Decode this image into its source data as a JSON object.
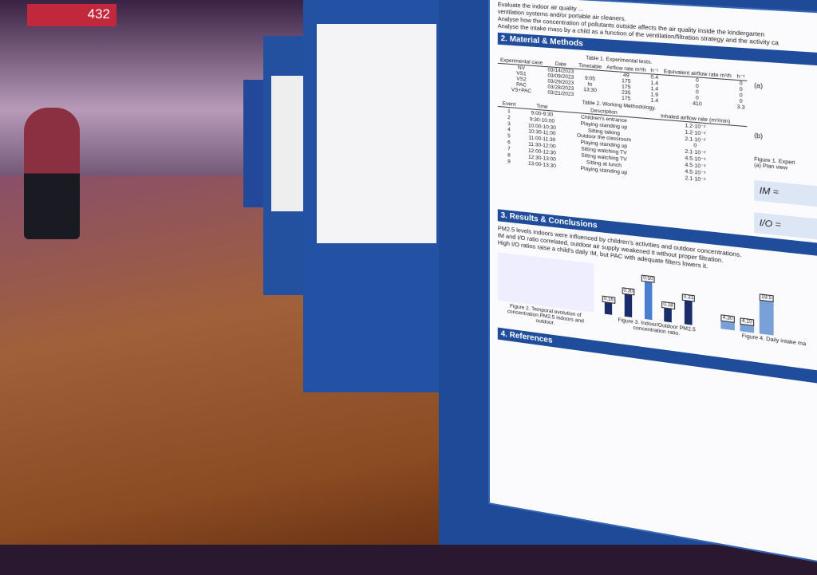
{
  "sign": {
    "room": "432"
  },
  "poster": {
    "intro": [
      "Evaluate the indoor air quality ...",
      "ventilation systems and/or portable air cleaners.",
      "Analyse how the concentration of pollutants outside affects the air quality inside the kindergarten",
      "Analyse the intake mass by a child as a function of the ventilation/filtration strategy and the activity ca"
    ],
    "methods": {
      "title": "2. Material & Methods",
      "table1": {
        "caption": "Table 1. Experimental tests.",
        "headers": [
          "Experimental case",
          "Date",
          "Timetable",
          "Airflow rate m³/h",
          "h⁻¹",
          "Equivalent airflow rate m³/h",
          "h⁻¹"
        ],
        "rows": [
          [
            "NV",
            "03/14/2023",
            "",
            "49",
            "0.4",
            "0",
            "0"
          ],
          [
            "VS1",
            "03/09/2023",
            "9:05",
            "175",
            "1.4",
            "0",
            "0"
          ],
          [
            "VS2",
            "03/29/2023",
            "to",
            "175",
            "1.4",
            "0",
            "0"
          ],
          [
            "PAC",
            "03/28/2023",
            "13:30",
            "235",
            "1.9",
            "0",
            "0"
          ],
          [
            "VS+PAC",
            "03/21/2023",
            "",
            "175",
            "1.4",
            "410",
            "3.3"
          ]
        ]
      },
      "table2": {
        "caption": "Table 2. Working Methodology.",
        "headers": [
          "Event",
          "Time",
          "Description",
          "Inhaled airflow rate (m³/min)"
        ],
        "rows": [
          [
            "1",
            "9:00-9:30",
            "Children's entrance",
            "1.2·10⁻²"
          ],
          [
            "2",
            "9:30-10:00",
            "Playing standing up",
            "1.2·10⁻²"
          ],
          [
            "3",
            "10:00-10:30",
            "Sitting talking",
            "2.1·10⁻²"
          ],
          [
            "4",
            "10:30-11:00",
            "Outdoor the classroom",
            "0"
          ],
          [
            "5",
            "11:00-11:30",
            "Playing standing up",
            "2.1·10⁻²"
          ],
          [
            "6",
            "11:30-12:00",
            "Sitting watching TV",
            "4.5·10⁻³"
          ],
          [
            "7",
            "12:00-12:30",
            "Sitting watching TV",
            "4.5·10⁻³"
          ],
          [
            "8",
            "12:30-13:00",
            "Sitting at lunch",
            "4.5·10⁻³"
          ],
          [
            "9",
            "13:00-13:30",
            "Playing standing up",
            "2.1·10⁻²"
          ]
        ]
      },
      "fig1": {
        "a": "(a)",
        "b": "(b)",
        "caption": "Figure 1. Experi",
        "sub": "(a) Plan view",
        "eq1": "IM =",
        "eq2": "I/O ="
      }
    },
    "results": {
      "title": "3. Results & Conclusions",
      "bullets": [
        "PM2.5 levels indoors were influenced by children's activities and outdoor concentrations.",
        "IM and I/O ratio correlated, outdoor air supply weakened it without proper filtration.",
        "High I/O ratios raise a child's daily IM, but PAC with adequate filters lowers it."
      ],
      "fig2": "Figure 2. Temporal evolution of concentration PM2.5 indoors and outdoor.",
      "fig3": "Figure 3. Indoor/Outdoor PM2.5 concentration ratio.",
      "fig3_labels": [
        "0.16",
        "0.30",
        "0.50",
        "0.18",
        "0.31"
      ],
      "fig4": "Figure 4. Daily intake ma",
      "fig4_labels": [
        "4.30",
        "4.10",
        "19.5"
      ]
    },
    "references": {
      "title": "4. References"
    }
  }
}
